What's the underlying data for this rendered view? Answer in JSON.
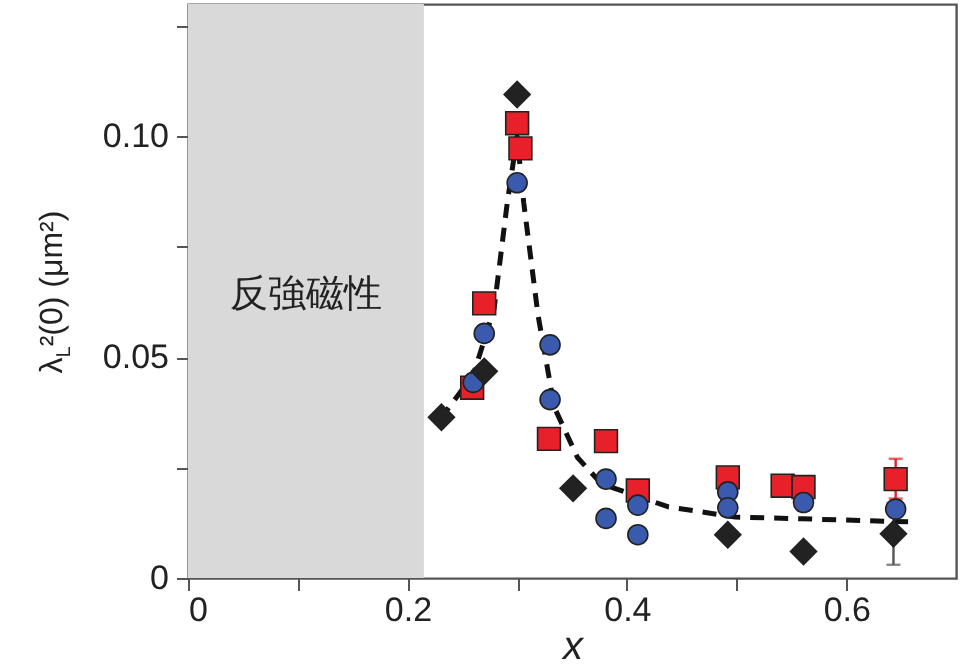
{
  "chart_data": {
    "type": "scatter",
    "xlabel": "x",
    "ylabel": "λ$_{L}$²(0) (μm²)",
    "xlim": [
      0,
      0.7
    ],
    "ylim": [
      0,
      0.13
    ],
    "xticks": [
      0,
      {
        "value": 0.1,
        "label": null
      },
      0.2,
      {
        "value": 0.3,
        "label": null
      },
      0.4,
      {
        "value": 0.5,
        "label": null
      },
      0.6
    ],
    "yticks": [
      0,
      {
        "value": 0.025,
        "label": null
      },
      0.05,
      {
        "value": 0.075,
        "label": null
      },
      {
        "value": 0.1,
        "label": "0.10"
      },
      {
        "value": 0.125,
        "label": null
      }
    ],
    "bands": [
      {
        "axis": "x",
        "from": 0,
        "to": 0.215,
        "label": "反強磁性",
        "color": "#d9d9d9"
      }
    ],
    "series": [
      {
        "type": "line",
        "color": "#111111",
        "line_style": "dashed",
        "x": [
          0.23,
          0.26,
          0.279,
          0.291,
          0.3,
          0.306,
          0.319,
          0.334,
          0.355,
          0.377,
          0.438,
          0.499,
          0.56,
          0.658
        ],
        "values": [
          0.036,
          0.046,
          0.061,
          0.085,
          0.1,
          0.085,
          0.0596,
          0.0386,
          0.0273,
          0.0213,
          0.0161,
          0.0138,
          0.0134,
          0.0127
        ]
      },
      {
        "color": "#e8202a",
        "marker": "square",
        "x": [
          0.259,
          0.27,
          0.3,
          0.303,
          0.329,
          0.381,
          0.41,
          0.492,
          0.542,
          0.561,
          0.645
        ],
        "values": [
          0.0431,
          0.0622,
          0.103,
          0.0973,
          0.0315,
          0.031,
          0.0198,
          0.0228,
          0.0209,
          0.0206,
          0.0224
        ],
        "errors": [
          null,
          null,
          null,
          null,
          null,
          null,
          null,
          null,
          null,
          null,
          [
            0.018,
            0.027
          ]
        ]
      },
      {
        "color": "#3a5bad",
        "marker": "circle",
        "x": [
          0.26,
          0.27,
          0.3,
          0.33,
          0.33,
          0.381,
          0.381,
          0.41,
          0.41,
          0.492,
          0.492,
          0.561,
          0.645
        ],
        "values": [
          0.0443,
          0.0554,
          0.0895,
          0.0528,
          0.0404,
          0.0224,
          0.0135,
          0.0165,
          0.0098,
          0.0195,
          0.0159,
          0.0171,
          0.0156
        ]
      },
      {
        "color": "#222222",
        "marker": "diamond",
        "x": [
          0.231,
          0.27,
          0.3,
          0.351,
          0.492,
          0.561,
          0.643
        ],
        "values": [
          0.0364,
          0.0468,
          0.1095,
          0.0203,
          0.0098,
          0.006,
          0.01
        ],
        "errors": [
          null,
          null,
          null,
          null,
          null,
          null,
          [
            0.003,
            0.017
          ]
        ]
      }
    ]
  }
}
